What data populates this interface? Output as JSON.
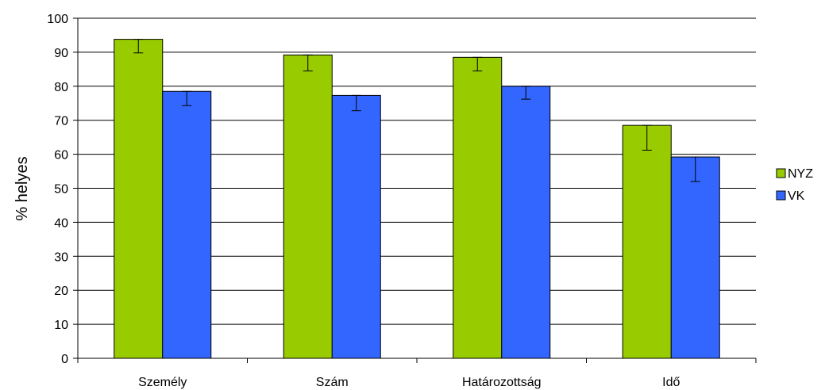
{
  "chart_data": {
    "type": "bar",
    "title": "",
    "xlabel": "",
    "ylabel": "% helyes",
    "ylim": [
      0,
      100
    ],
    "ytick_step": 10,
    "grid": "horizontal",
    "legend_position": "right",
    "categories": [
      "Személy",
      "Szám",
      "Határozottság",
      "Idő"
    ],
    "series": [
      {
        "name": "NYZ",
        "color": "#99cc00",
        "values": [
          93.8,
          89.2,
          88.5,
          68.5
        ],
        "error_low": [
          89.8,
          84.5,
          84.5,
          61.2
        ],
        "error_high": [
          93.8,
          89.2,
          88.5,
          68.5
        ]
      },
      {
        "name": "VK",
        "color": "#3366ff",
        "values": [
          78.5,
          77.3,
          80.0,
          59.2
        ],
        "error_low": [
          74.3,
          72.8,
          76.2,
          52.0
        ],
        "error_high": [
          78.5,
          77.3,
          80.0,
          59.2
        ]
      }
    ]
  }
}
